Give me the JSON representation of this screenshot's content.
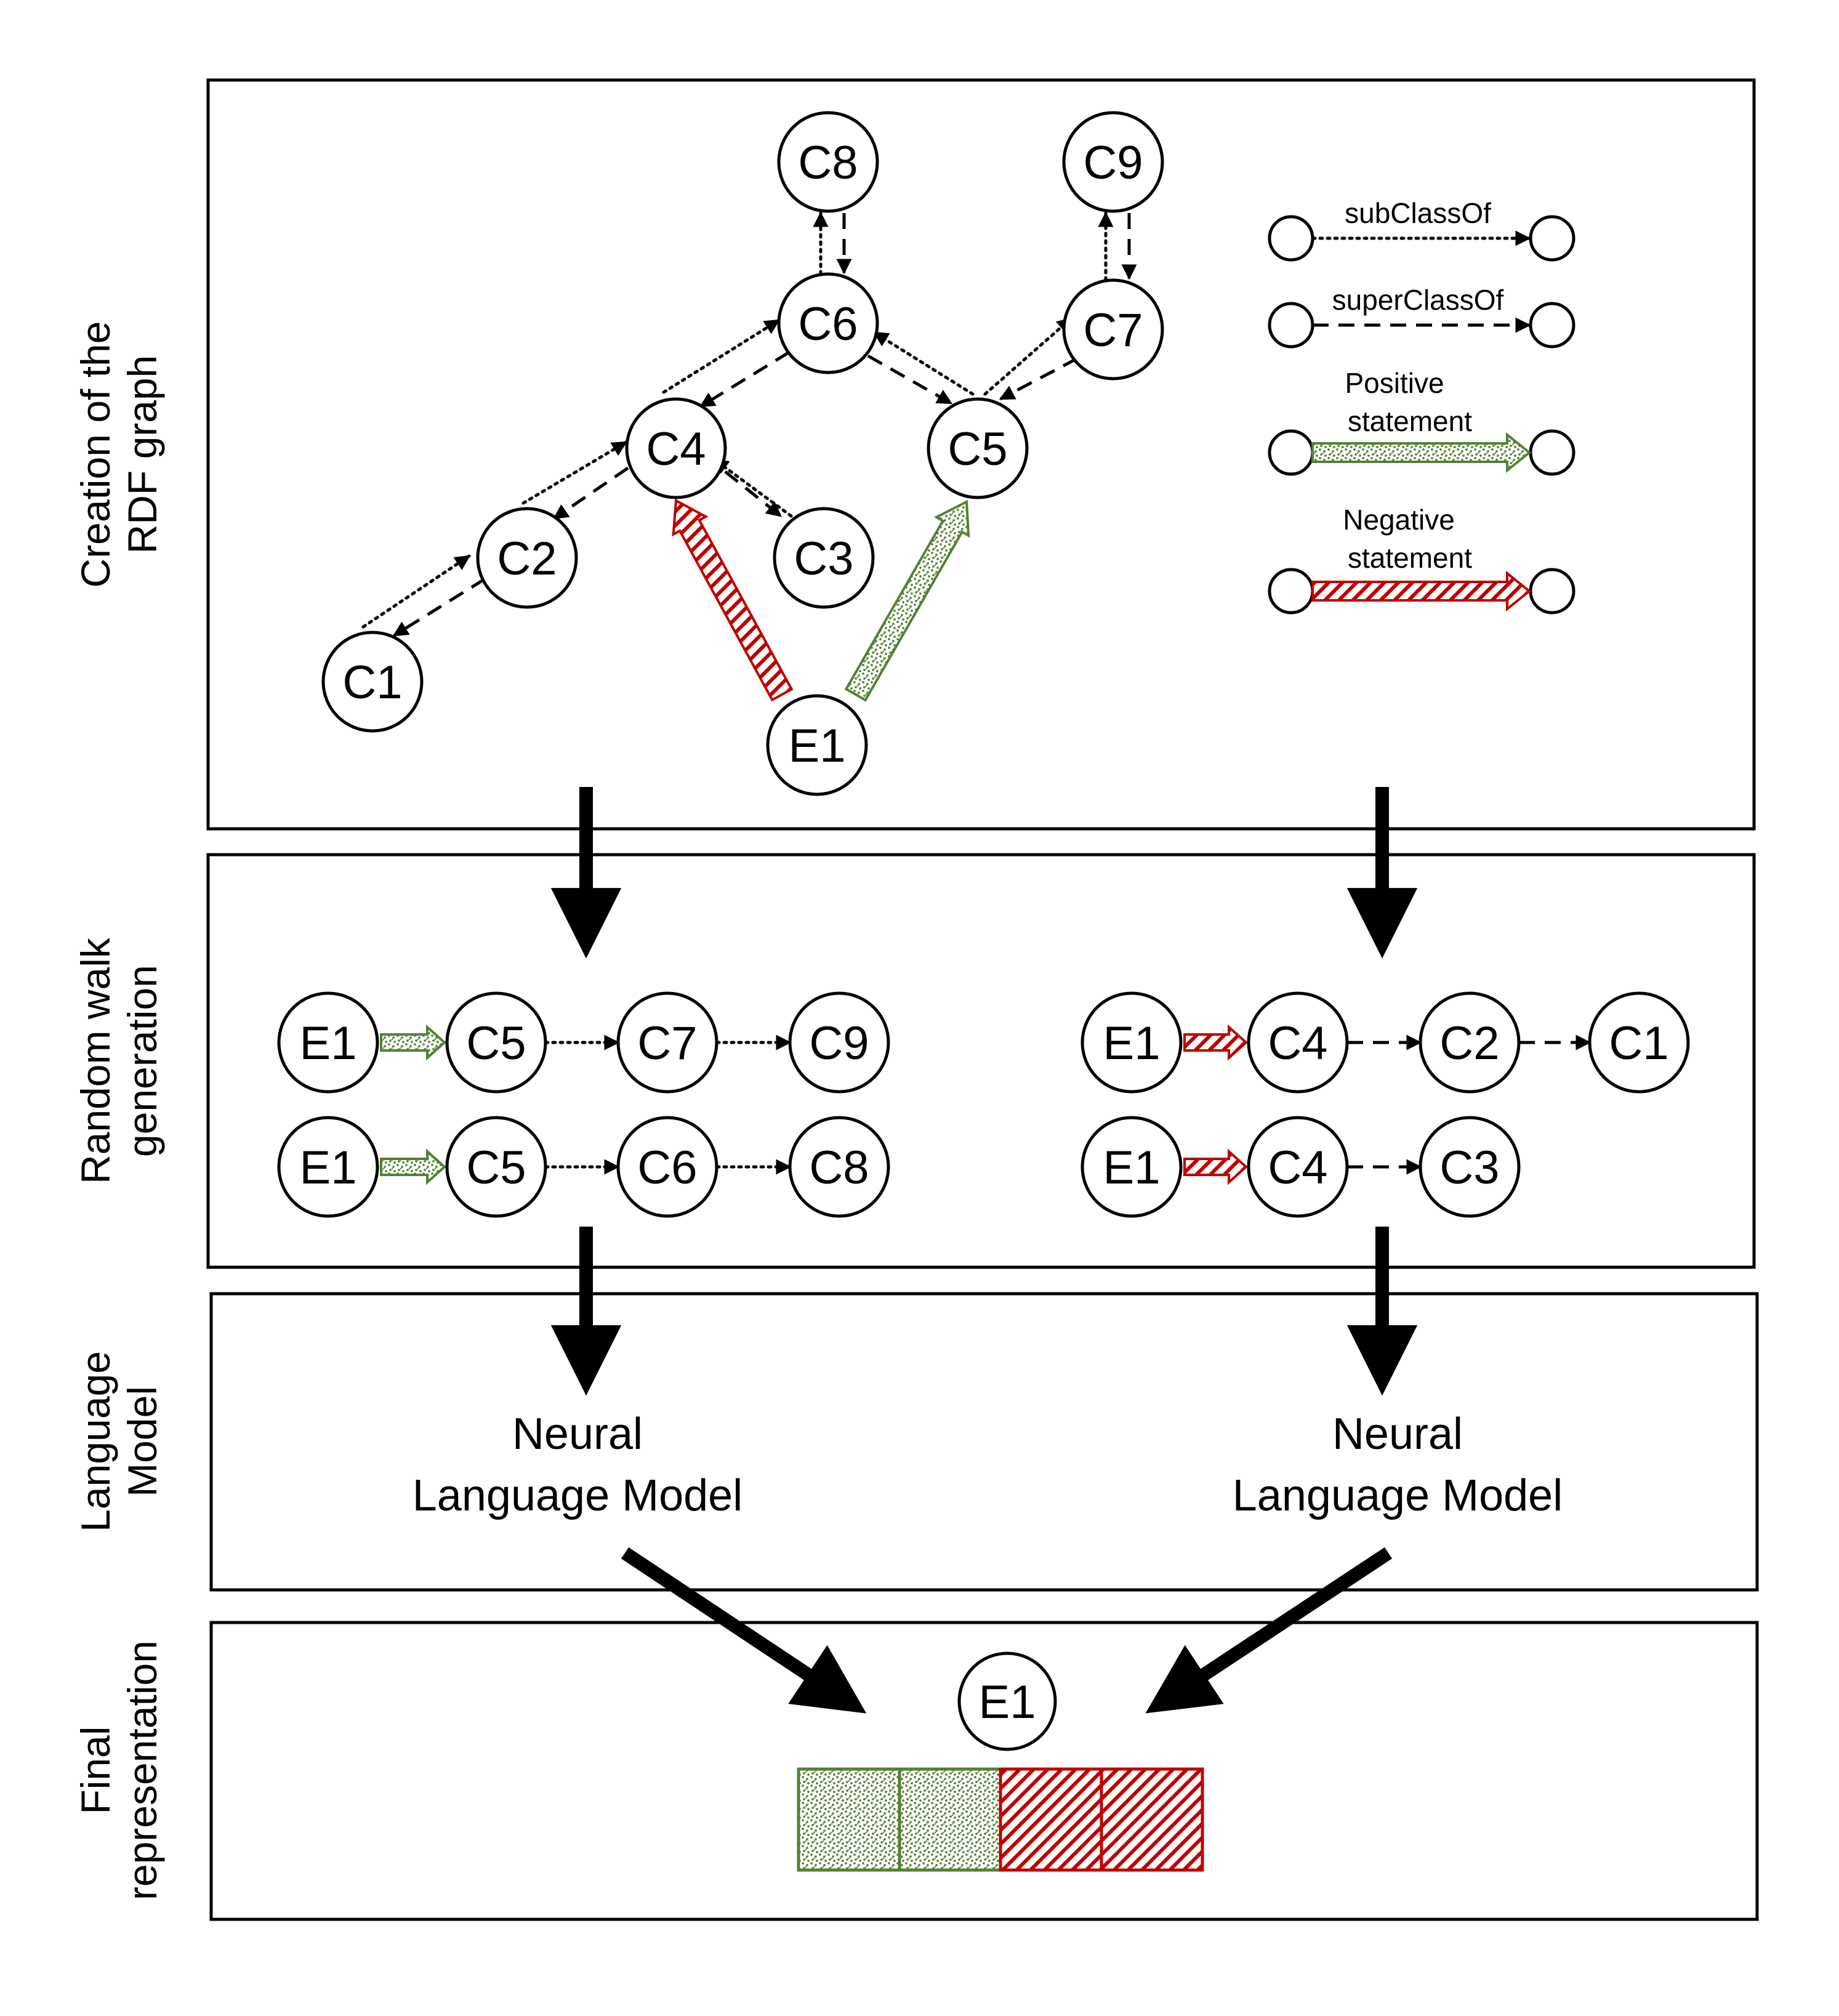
{
  "sections": {
    "rdf_graph": "Creation of the RDF graph",
    "rdf_graph_lines": [
      "Creation of the",
      "RDF graph"
    ],
    "random_walk_lines": [
      "Random walk",
      "generation"
    ],
    "language_model_lines": [
      "Language",
      "Model"
    ],
    "final_lines": [
      "Final",
      "representation"
    ]
  },
  "graph": {
    "nodes": [
      "C8",
      "C9",
      "C6",
      "C7",
      "C4",
      "C5",
      "C2",
      "C3",
      "C1",
      "E1"
    ],
    "edges": [
      {
        "from": "C1",
        "to": "C2",
        "relations": [
          "subClassOf",
          "superClassOf"
        ]
      },
      {
        "from": "C2",
        "to": "C4",
        "relations": [
          "subClassOf",
          "superClassOf"
        ]
      },
      {
        "from": "C3",
        "to": "C4",
        "relations": [
          "subClassOf",
          "superClassOf"
        ]
      },
      {
        "from": "C4",
        "to": "C6",
        "relations": [
          "subClassOf",
          "superClassOf"
        ]
      },
      {
        "from": "C5",
        "to": "C6",
        "relations": [
          "subClassOf",
          "superClassOf"
        ]
      },
      {
        "from": "C5",
        "to": "C7",
        "relations": [
          "subClassOf",
          "superClassOf"
        ]
      },
      {
        "from": "C6",
        "to": "C8",
        "relations": [
          "subClassOf",
          "superClassOf"
        ]
      },
      {
        "from": "C7",
        "to": "C9",
        "relations": [
          "subClassOf",
          "superClassOf"
        ]
      },
      {
        "from": "E1",
        "to": "C5",
        "relations": [
          "Positive statement"
        ]
      },
      {
        "from": "E1",
        "to": "C4",
        "relations": [
          "Negative statement"
        ]
      }
    ]
  },
  "legend": {
    "subclass": "subClassOf",
    "superclass": "superClassOf",
    "positive": [
      "Positive",
      "statement"
    ],
    "negative": [
      "Negative",
      "statement"
    ]
  },
  "walks": {
    "positive": [
      [
        "E1",
        "C5",
        "C7",
        "C9"
      ],
      [
        "E1",
        "C5",
        "C6",
        "C8"
      ]
    ],
    "negative": [
      [
        "E1",
        "C4",
        "C2",
        "C1"
      ],
      [
        "E1",
        "C4",
        "C3"
      ]
    ]
  },
  "language_model": {
    "left": [
      "Neural",
      "Language Model"
    ],
    "right": [
      "Neural",
      "Language Model"
    ]
  },
  "final": {
    "entity": "E1",
    "vector": [
      "positive",
      "positive",
      "negative",
      "negative"
    ]
  },
  "colors": {
    "positive": "#538135",
    "negative": "#c00000"
  }
}
